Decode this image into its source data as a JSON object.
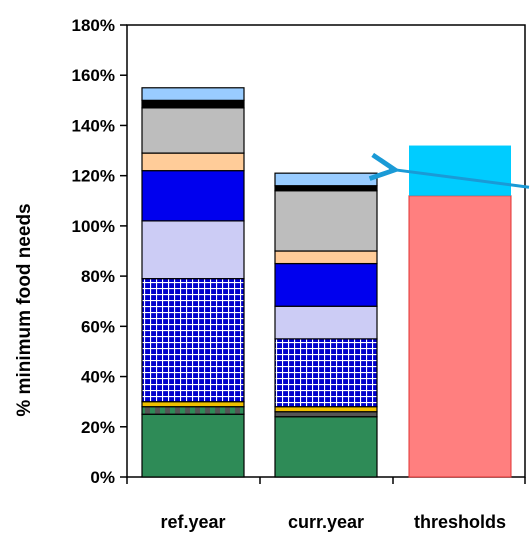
{
  "chart_data": {
    "type": "bar",
    "stacked": true,
    "title": "",
    "xlabel": "",
    "ylabel": "% minimum food needs",
    "ylim": [
      0,
      180
    ],
    "yticks": [
      "0%",
      "20%",
      "40%",
      "60%",
      "80%",
      "100%",
      "120%",
      "140%",
      "160%",
      "180%"
    ],
    "grid": false,
    "legend": "none",
    "categories": [
      "ref.year",
      "curr.year",
      "thresholds"
    ],
    "stacks": [
      {
        "category": "ref.year",
        "segments": [
          {
            "value": 25,
            "color": "#2e8b57",
            "pattern": "solid"
          },
          {
            "value": 3,
            "color": "#555555",
            "pattern": "dash"
          },
          {
            "value": 2,
            "color": "#f0c000",
            "pattern": "solid"
          },
          {
            "value": 49,
            "color": "#0000cc",
            "pattern": "grid"
          },
          {
            "value": 23,
            "color": "#ccccf5",
            "pattern": "solid"
          },
          {
            "value": 20,
            "color": "#0000ee",
            "pattern": "solid"
          },
          {
            "value": 7,
            "color": "#ffcc99",
            "pattern": "solid"
          },
          {
            "value": 18,
            "color": "#bdbdbd",
            "pattern": "solid"
          },
          {
            "value": 3,
            "color": "#000000",
            "pattern": "solid"
          },
          {
            "value": 5,
            "color": "#99ccff",
            "pattern": "solid"
          }
        ]
      },
      {
        "category": "curr.year",
        "segments": [
          {
            "value": 24,
            "color": "#2e8b57",
            "pattern": "solid"
          },
          {
            "value": 2,
            "color": "#555555",
            "pattern": "solid"
          },
          {
            "value": 2,
            "color": "#f0c000",
            "pattern": "solid"
          },
          {
            "value": 27,
            "color": "#0000cc",
            "pattern": "grid"
          },
          {
            "value": 13,
            "color": "#ccccf5",
            "pattern": "solid"
          },
          {
            "value": 17,
            "color": "#0000ee",
            "pattern": "solid"
          },
          {
            "value": 5,
            "color": "#ffcc99",
            "pattern": "solid"
          },
          {
            "value": 24,
            "color": "#bdbdbd",
            "pattern": "solid"
          },
          {
            "value": 2,
            "color": "#000000",
            "pattern": "solid"
          },
          {
            "value": 5,
            "color": "#99ccff",
            "pattern": "solid"
          }
        ]
      },
      {
        "category": "thresholds",
        "segments": [
          {
            "value": 112,
            "color": "#ff7f7f",
            "pattern": "solid"
          },
          {
            "value": 20,
            "color": "#00ccff",
            "pattern": "solid"
          }
        ]
      }
    ],
    "annotation": {
      "type": "arrow",
      "color": "#1a9ad6",
      "from_y": 117,
      "to_category": "curr.year",
      "to_y": 129
    }
  }
}
